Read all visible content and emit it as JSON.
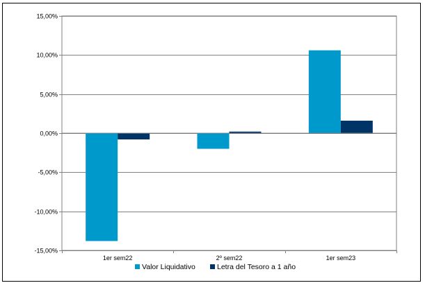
{
  "chart_data": {
    "type": "bar",
    "title": "",
    "xlabel": "",
    "ylabel": "",
    "categories": [
      "1er sem22",
      "2º sem22",
      "1er sem23"
    ],
    "series": [
      {
        "name": "Valor Liquidativo",
        "values": [
          -13.8,
          -2.0,
          10.6
        ],
        "color": "#0099cc"
      },
      {
        "name": "Letra del Tesoro a 1 año",
        "values": [
          -0.8,
          0.2,
          1.6
        ],
        "color": "#003366"
      }
    ],
    "ylim": [
      -15,
      15
    ],
    "yticks": [
      15,
      10,
      5,
      0,
      -5,
      -10,
      -15
    ],
    "ytick_labels": [
      "15,00%",
      "10,00%",
      "5,00%",
      "0,00%",
      "-5,00%",
      "-10,00%",
      "-15,00%"
    ],
    "grid": true,
    "legend_position": "bottom"
  },
  "colors": {
    "gridline": "#808080",
    "axis": "#808080",
    "plot_border": "#808080"
  }
}
